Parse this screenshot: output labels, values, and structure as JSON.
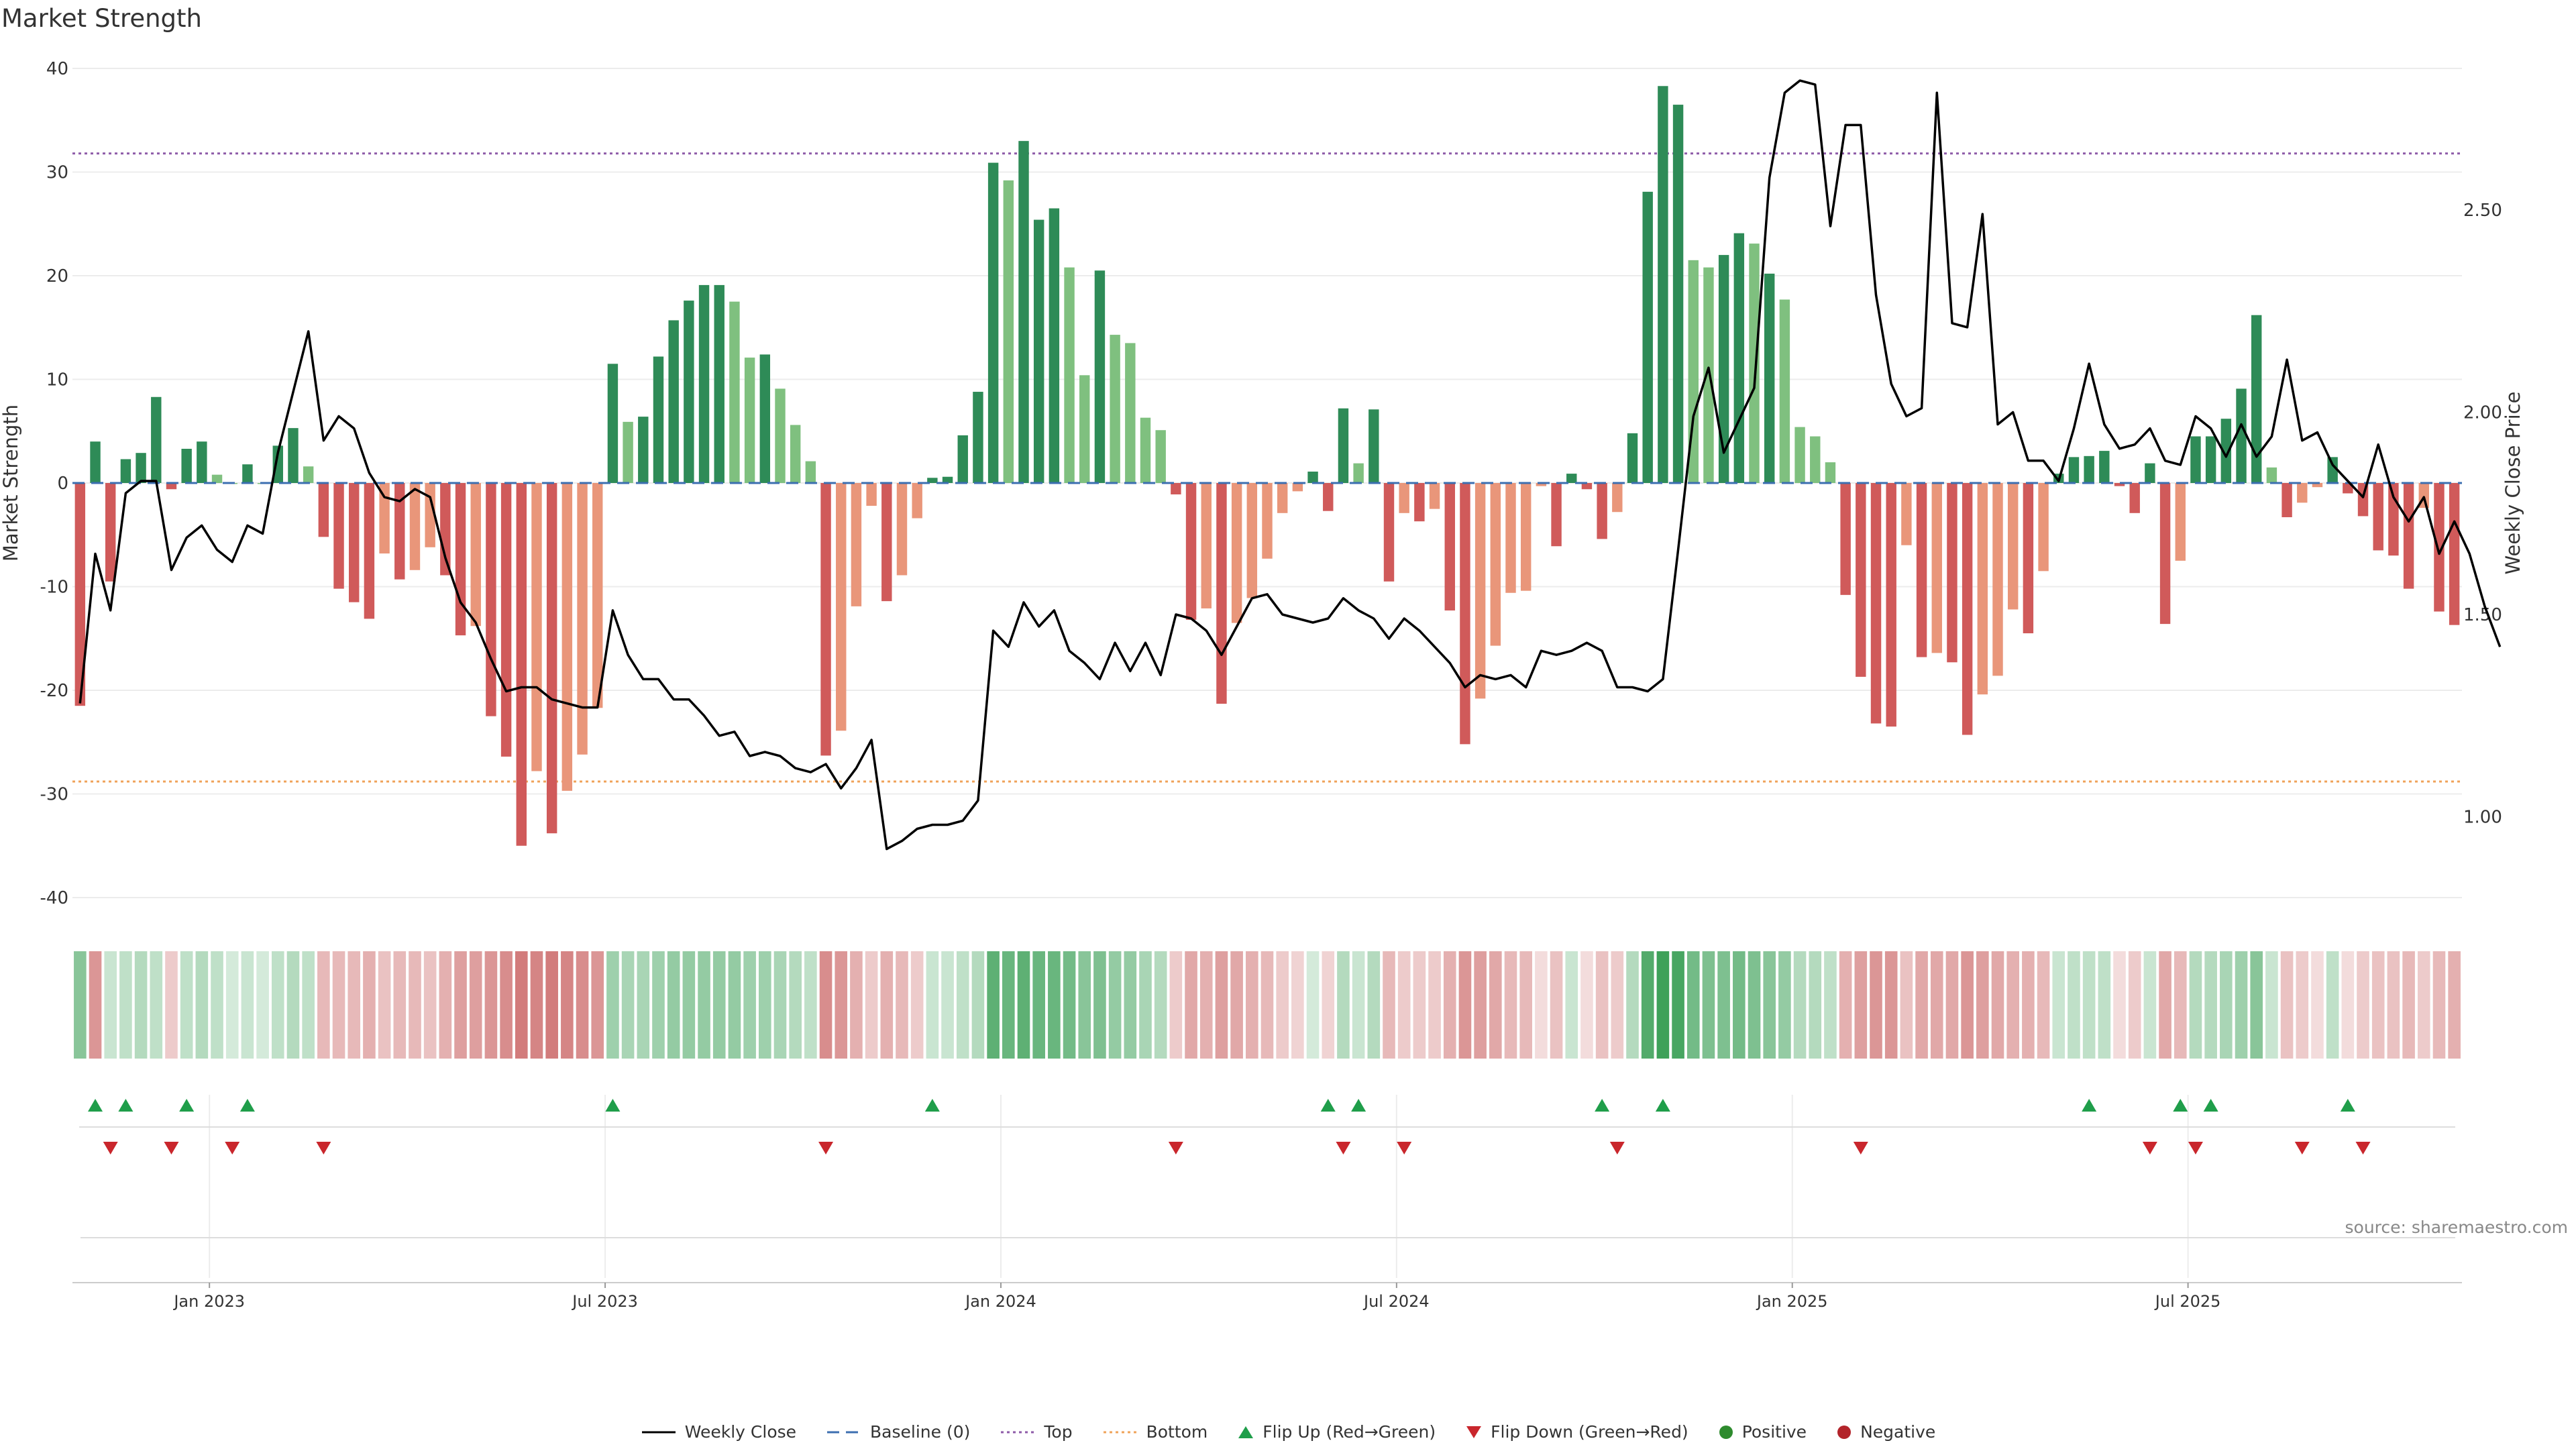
{
  "chart_data": {
    "type": "bar",
    "title": "Market Strength",
    "ylabel_left": "Market Strength",
    "ylabel_right": "Weekly Close Price",
    "source": "source: sharemaestro.com",
    "ylim_left": [
      -40,
      40
    ],
    "yticks_left": [
      -40,
      -30,
      -20,
      -10,
      0,
      10,
      20,
      30,
      40
    ],
    "ylim_right": [
      0.8,
      2.85
    ],
    "yticks_right": [
      1.0,
      1.5,
      2.0,
      2.5
    ],
    "yticks_right_labels": [
      "1.00",
      "1.50",
      "2.00",
      "2.50"
    ],
    "top_line": 31.8,
    "bottom_line": -28.8,
    "x_ticks": [
      {
        "index": 9,
        "label": "Jan 2023"
      },
      {
        "index": 35,
        "label": "Jul 2023"
      },
      {
        "index": 61,
        "label": "Jan 2024"
      },
      {
        "index": 87,
        "label": "Jul 2024"
      },
      {
        "index": 113,
        "label": "Jan 2025"
      },
      {
        "index": 139,
        "label": "Jul 2025"
      }
    ],
    "strength": [
      -21.5,
      4,
      -9.5,
      2.3,
      2.9,
      8.3,
      -0.6,
      3.3,
      4,
      0.8,
      0,
      1.8,
      0,
      3.6,
      5.3,
      1.6,
      -5.2,
      -10.2,
      -11.5,
      -13.1,
      -6.8,
      -9.3,
      -8.4,
      -6.2,
      -8.9,
      -14.7,
      -13.8,
      -22.5,
      -26.4,
      -35,
      -27.8,
      -33.8,
      -29.7,
      -26.2,
      -21.7,
      11.5,
      5.9,
      6.4,
      12.2,
      15.7,
      17.6,
      19.1,
      19.1,
      17.5,
      12.1,
      12.4,
      9.1,
      5.6,
      2.1,
      -26.3,
      -23.9,
      -11.9,
      -2.2,
      -11.4,
      -8.9,
      -3.4,
      0.5,
      0.6,
      4.6,
      8.8,
      30.9,
      29.2,
      33,
      25.4,
      26.5,
      20.8,
      10.4,
      20.5,
      14.3,
      13.5,
      6.3,
      5.1,
      -1.1,
      -13.2,
      -12.1,
      -21.3,
      -13.5,
      -11.1,
      -7.3,
      -2.9,
      -0.8,
      1.1,
      -2.7,
      7.2,
      1.9,
      7.1,
      -9.5,
      -2.9,
      -3.7,
      -2.5,
      -12.3,
      -25.2,
      -20.8,
      -15.7,
      -10.6,
      -10.4,
      -0.3,
      -6.1,
      0.9,
      -0.6,
      -5.4,
      -2.8,
      4.8,
      28.1,
      38.3,
      36.5,
      21.5,
      20.8,
      22,
      24.1,
      23.1,
      20.2,
      17.7,
      5.4,
      4.5,
      2,
      -10.8,
      -18.7,
      -23.2,
      -23.5,
      -6,
      -16.8,
      -16.4,
      -17.3,
      -24.3,
      -20.4,
      -18.6,
      -12.2,
      -14.5,
      -8.5,
      0.9,
      2.5,
      2.6,
      3.1,
      -0.3,
      -2.9,
      1.9,
      -13.6,
      -7.5,
      4.5,
      4.5,
      6.2,
      9.1,
      16.2,
      1.5,
      -3.3,
      -1.9,
      -0.4,
      2.5,
      -1,
      -3.2,
      -6.5,
      -7,
      -10.2,
      -2.4,
      -12.4,
      -13.7
    ],
    "close": [
      1.28,
      1.65,
      1.51,
      1.8,
      1.83,
      1.83,
      1.61,
      1.69,
      1.72,
      1.66,
      1.63,
      1.72,
      1.7,
      1.9,
      2.05,
      2.2,
      1.93,
      1.99,
      1.96,
      1.85,
      1.79,
      1.78,
      1.81,
      1.79,
      1.64,
      1.53,
      1.48,
      1.39,
      1.31,
      1.32,
      1.32,
      1.29,
      1.28,
      1.27,
      1.27,
      1.51,
      1.4,
      1.34,
      1.34,
      1.29,
      1.29,
      1.25,
      1.2,
      1.21,
      1.15,
      1.16,
      1.15,
      1.12,
      1.11,
      1.13,
      1.07,
      1.12,
      1.19,
      0.92,
      0.94,
      0.97,
      0.98,
      0.98,
      0.99,
      1.04,
      1.46,
      1.42,
      1.53,
      1.47,
      1.51,
      1.41,
      1.38,
      1.34,
      1.43,
      1.36,
      1.43,
      1.35,
      1.5,
      1.49,
      1.46,
      1.4,
      1.47,
      1.54,
      1.55,
      1.5,
      1.49,
      1.48,
      1.49,
      1.54,
      1.51,
      1.49,
      1.44,
      1.49,
      1.46,
      1.42,
      1.38,
      1.32,
      1.35,
      1.34,
      1.35,
      1.32,
      1.41,
      1.4,
      1.41,
      1.43,
      1.41,
      1.32,
      1.32,
      1.31,
      1.34,
      1.66,
      1.99,
      2.11,
      1.9,
      1.98,
      2.06,
      2.58,
      2.79,
      2.82,
      2.81,
      2.46,
      2.71,
      2.71,
      2.29,
      2.07,
      1.99,
      2.01,
      2.79,
      2.22,
      2.21,
      2.49,
      1.97,
      2.0,
      1.88,
      1.88,
      1.83,
      1.96,
      2.12,
      1.97,
      1.91,
      1.92,
      1.96,
      1.88,
      1.87,
      1.99,
      1.96,
      1.89,
      1.97,
      1.89,
      1.94,
      2.13,
      1.93,
      1.95,
      1.87,
      1.83,
      1.79,
      1.92,
      1.79,
      1.73,
      1.79,
      1.65,
      1.73,
      1.65,
      1.52,
      1.42
    ],
    "heat": [
      0.55,
      -0.6,
      0.25,
      0.3,
      0.35,
      0.3,
      -0.3,
      0.3,
      0.35,
      0.3,
      0.2,
      0.25,
      0.2,
      0.3,
      0.35,
      0.3,
      -0.4,
      -0.4,
      -0.4,
      -0.45,
      -0.35,
      -0.4,
      -0.4,
      -0.35,
      -0.45,
      -0.55,
      -0.55,
      -0.6,
      -0.65,
      -0.75,
      -0.7,
      -0.75,
      -0.7,
      -0.65,
      -0.6,
      0.45,
      0.4,
      0.4,
      0.45,
      0.5,
      0.5,
      0.5,
      0.5,
      0.5,
      0.45,
      0.45,
      0.4,
      0.35,
      0.3,
      -0.65,
      -0.6,
      -0.45,
      -0.3,
      -0.45,
      -0.4,
      -0.3,
      0.25,
      0.25,
      0.3,
      0.35,
      0.75,
      0.7,
      0.75,
      0.7,
      0.7,
      0.65,
      0.55,
      0.6,
      0.5,
      0.5,
      0.4,
      0.35,
      -0.3,
      -0.5,
      -0.45,
      -0.55,
      -0.5,
      -0.45,
      -0.4,
      -0.3,
      -0.25,
      0.2,
      -0.25,
      0.35,
      0.25,
      0.35,
      -0.4,
      -0.3,
      -0.3,
      -0.3,
      -0.45,
      -0.6,
      -0.55,
      -0.5,
      -0.4,
      -0.4,
      -0.2,
      -0.35,
      0.25,
      -0.2,
      -0.35,
      -0.3,
      0.35,
      0.8,
      0.9,
      0.85,
      0.65,
      0.6,
      0.6,
      0.65,
      0.6,
      0.55,
      0.5,
      0.35,
      0.35,
      0.3,
      -0.45,
      -0.55,
      -0.6,
      -0.6,
      -0.35,
      -0.5,
      -0.5,
      -0.5,
      -0.6,
      -0.55,
      -0.5,
      -0.45,
      -0.45,
      -0.4,
      0.25,
      0.3,
      0.3,
      0.3,
      -0.2,
      -0.3,
      0.25,
      -0.5,
      -0.4,
      0.35,
      0.35,
      0.4,
      0.45,
      0.55,
      0.25,
      -0.35,
      -0.3,
      -0.2,
      0.3,
      -0.2,
      -0.3,
      -0.35,
      -0.35,
      -0.4,
      -0.3,
      -0.4,
      -0.45
    ],
    "flips_up": [
      1,
      3,
      7,
      11,
      35,
      56,
      82,
      84,
      100,
      104,
      132,
      138,
      140,
      149
    ],
    "flips_down": [
      2,
      6,
      10,
      16,
      49,
      72,
      83,
      87,
      101,
      117,
      136,
      139,
      146,
      150
    ],
    "legend": [
      "Weekly Close",
      "Baseline (0)",
      "Top",
      "Bottom",
      "Flip Up (Red→Green)",
      "Flip Down (Green→Red)",
      "Positive",
      "Negative"
    ]
  }
}
